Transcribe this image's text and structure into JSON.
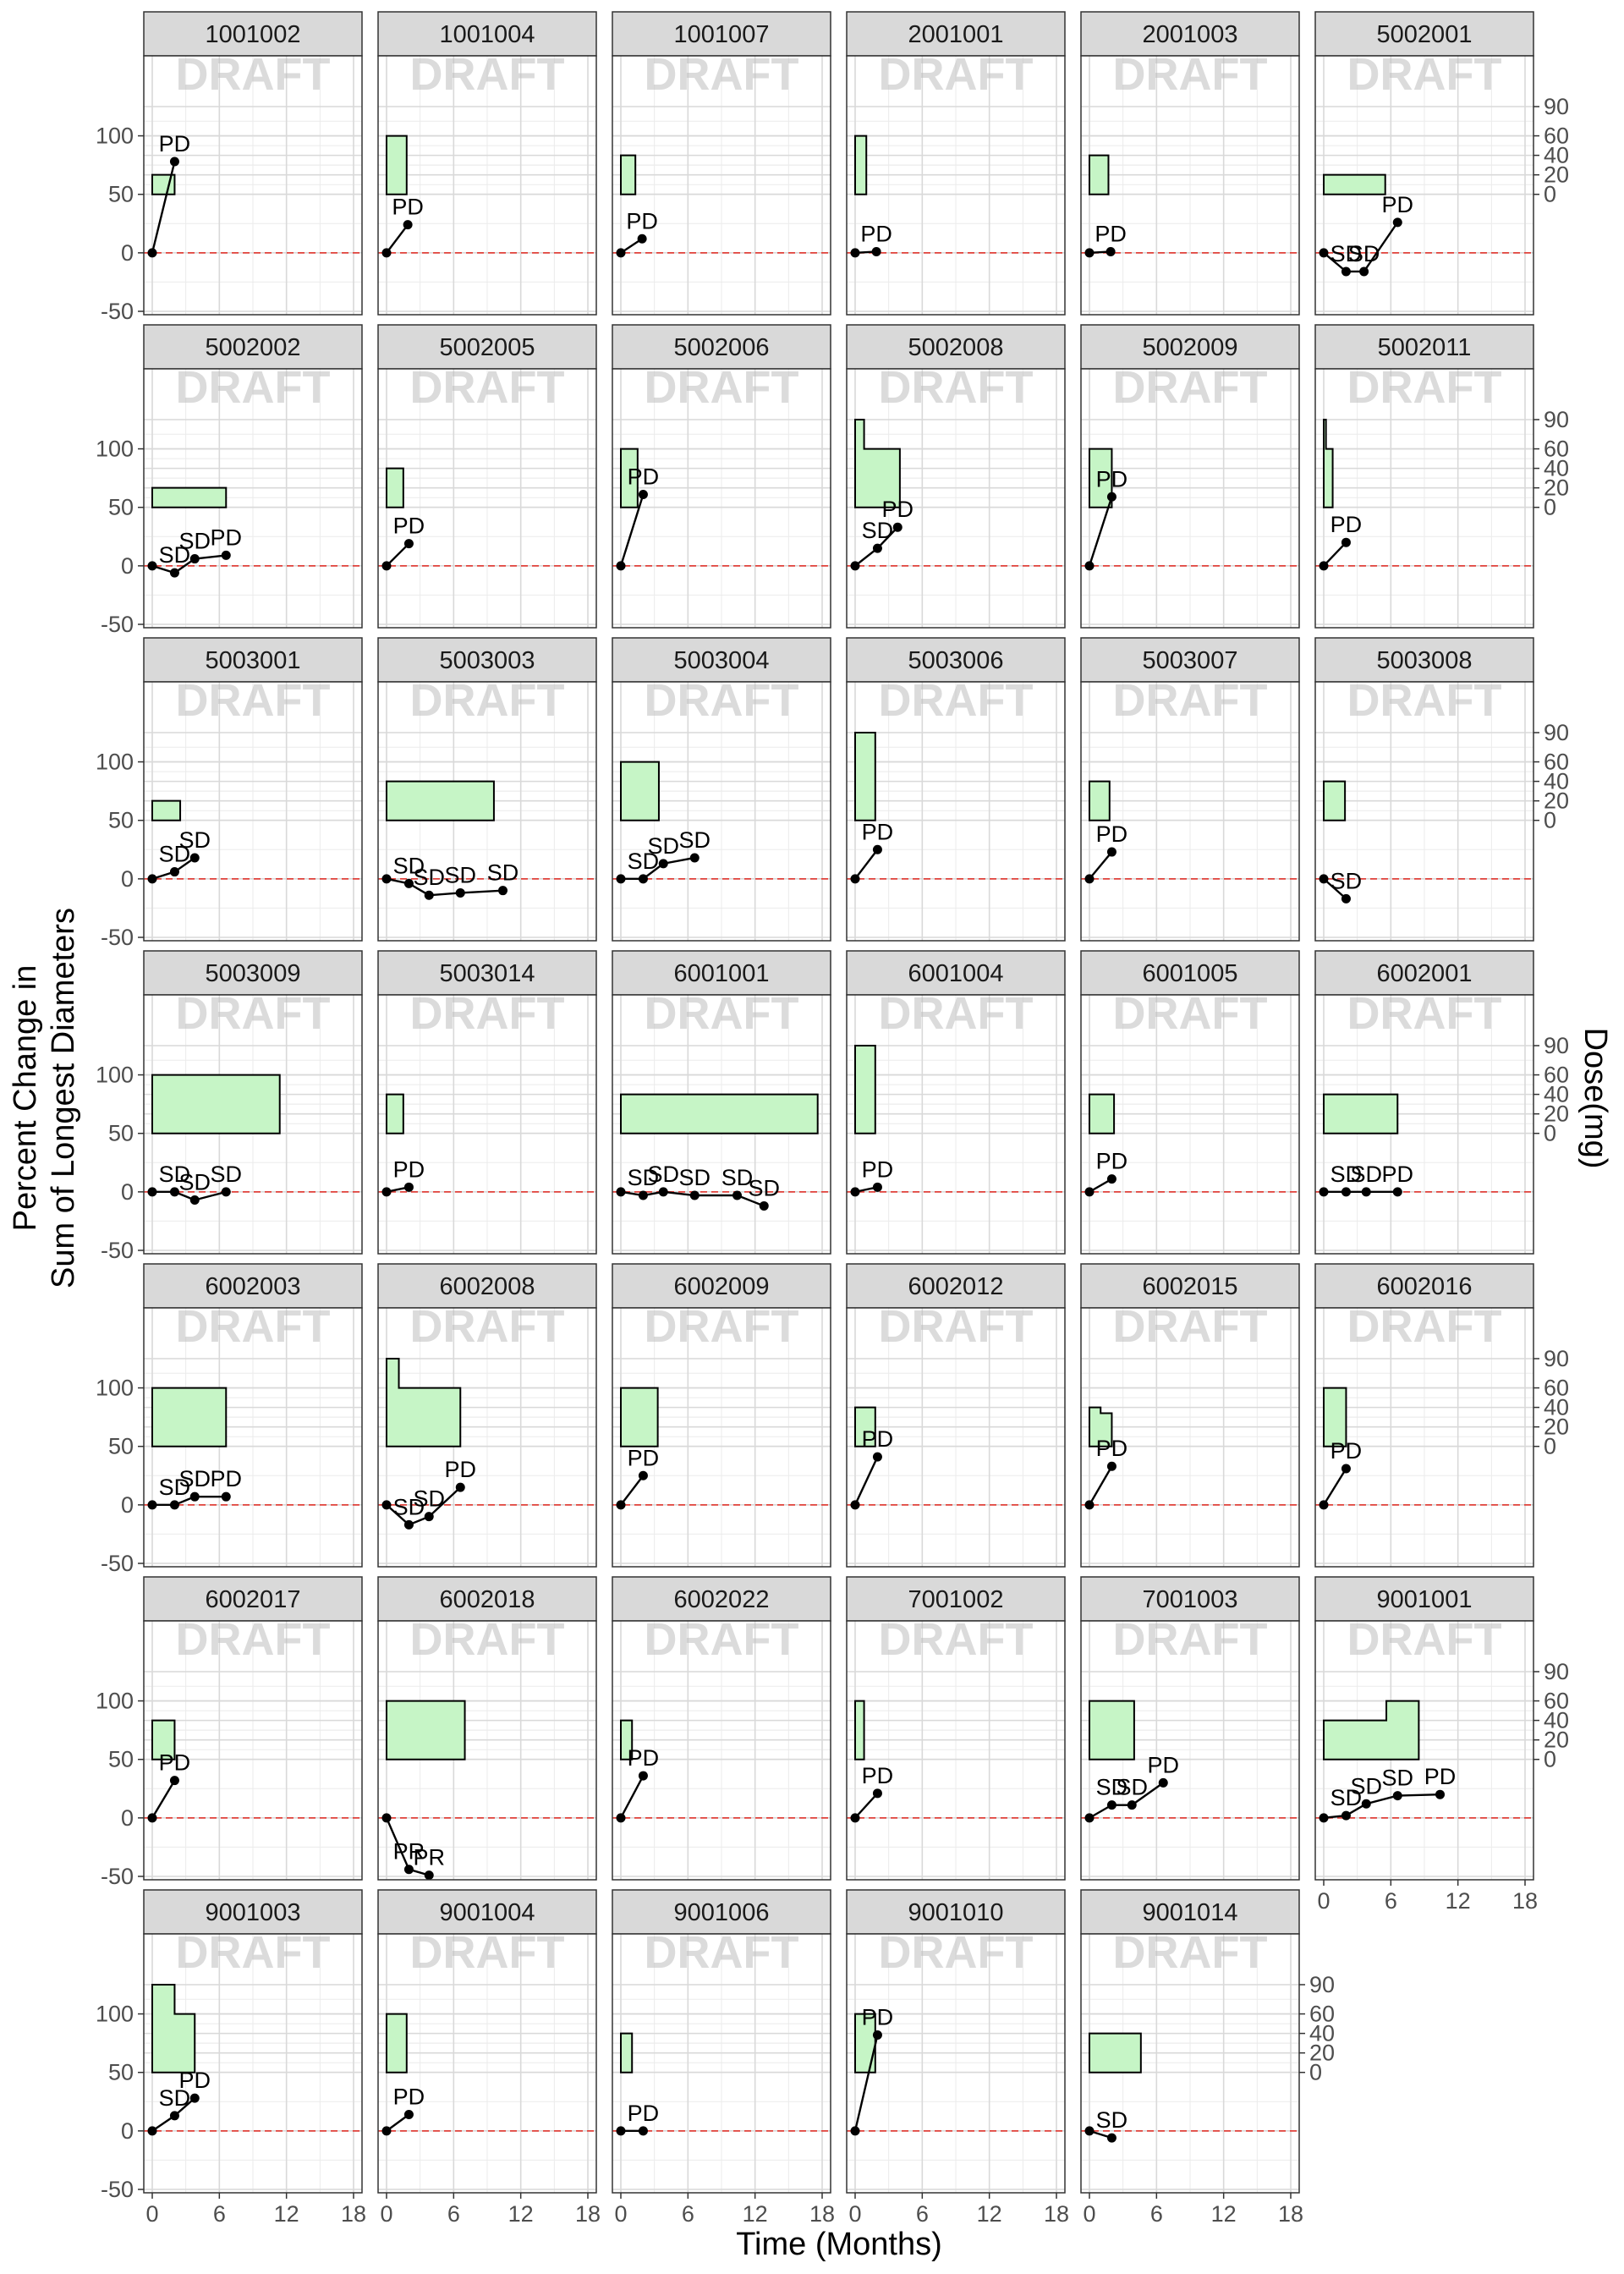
{
  "chart_data": {
    "type": "line",
    "xlabel": "Time (Months)",
    "ylabel": [
      "Percent Change in",
      "Sum of Longest Diameters"
    ],
    "y2label": "Dose(mg)",
    "watermark": "DRAFT",
    "xlim": [
      0,
      18
    ],
    "x_ticks": [
      0,
      6,
      12,
      18
    ],
    "ylim": [
      -50,
      125
    ],
    "y_ticks": [
      -50,
      0,
      50,
      100
    ],
    "y2_ticks": [
      0,
      20,
      40,
      60,
      90
    ],
    "y2_transform": "y = 50 + dose * 50 / 60",
    "reference_line": 0,
    "colors": {
      "dose_fill": "#c6f5c6",
      "ref_line": "#e0413a",
      "strip_bg": "#d9d9d9",
      "line": "#000000"
    },
    "panels": [
      {
        "id": "1001002",
        "dose": [
          [
            0,
            20
          ],
          [
            2,
            20
          ]
        ],
        "points": [
          {
            "x": 0,
            "y": 0
          },
          {
            "x": 2,
            "y": 78,
            "label": "PD"
          }
        ]
      },
      {
        "id": "1001004",
        "dose": [
          [
            0,
            60
          ],
          [
            1.8,
            60
          ]
        ],
        "points": [
          {
            "x": 0,
            "y": 0
          },
          {
            "x": 1.9,
            "y": 24,
            "label": "PD"
          }
        ]
      },
      {
        "id": "1001007",
        "dose": [
          [
            0,
            40
          ],
          [
            1.3,
            40
          ]
        ],
        "points": [
          {
            "x": 0,
            "y": 0
          },
          {
            "x": 1.9,
            "y": 12,
            "label": "PD"
          }
        ]
      },
      {
        "id": "2001001",
        "dose": [
          [
            0,
            60
          ],
          [
            1,
            60
          ]
        ],
        "points": [
          {
            "x": 0,
            "y": 0
          },
          {
            "x": 1.9,
            "y": 1,
            "label": "PD"
          }
        ]
      },
      {
        "id": "2001003",
        "dose": [
          [
            0,
            40
          ],
          [
            1.7,
            40
          ]
        ],
        "points": [
          {
            "x": 0,
            "y": 0
          },
          {
            "x": 1.9,
            "y": 1,
            "label": "PD"
          }
        ]
      },
      {
        "id": "5002001",
        "dose": [
          [
            0,
            20
          ],
          [
            5.5,
            20
          ]
        ],
        "points": [
          {
            "x": 0,
            "y": 0
          },
          {
            "x": 2,
            "y": -16,
            "label": "SD"
          },
          {
            "x": 3.6,
            "y": -16,
            "label": "SD"
          },
          {
            "x": 6.6,
            "y": 26,
            "label": "PD"
          }
        ]
      },
      {
        "id": "5002002",
        "dose": [
          [
            0,
            20
          ],
          [
            6.6,
            20
          ]
        ],
        "points": [
          {
            "x": 0,
            "y": 0
          },
          {
            "x": 2,
            "y": -6,
            "label": "SD"
          },
          {
            "x": 3.8,
            "y": 6,
            "label": "SD"
          },
          {
            "x": 6.6,
            "y": 9,
            "label": "PD"
          }
        ]
      },
      {
        "id": "5002005",
        "dose": [
          [
            0,
            40
          ],
          [
            1.5,
            40
          ]
        ],
        "points": [
          {
            "x": 0,
            "y": 0
          },
          {
            "x": 2,
            "y": 19,
            "label": "PD"
          }
        ]
      },
      {
        "id": "5002006",
        "dose": [
          [
            0,
            60
          ],
          [
            1.5,
            60
          ]
        ],
        "points": [
          {
            "x": 0,
            "y": 0
          },
          {
            "x": 2,
            "y": 61,
            "label": "PD"
          }
        ]
      },
      {
        "id": "5002008",
        "dose": [
          [
            0,
            90
          ],
          [
            0.8,
            90
          ],
          [
            0.8,
            60
          ],
          [
            4,
            60
          ]
        ],
        "points": [
          {
            "x": 0,
            "y": 0
          },
          {
            "x": 2,
            "y": 15,
            "label": "SD"
          },
          {
            "x": 3.8,
            "y": 33,
            "label": "PD"
          }
        ]
      },
      {
        "id": "5002009",
        "dose": [
          [
            0,
            60
          ],
          [
            2,
            60
          ]
        ],
        "points": [
          {
            "x": 0,
            "y": 0
          },
          {
            "x": 2,
            "y": 59,
            "label": "PD"
          }
        ]
      },
      {
        "id": "5002011",
        "dose": [
          [
            0,
            90
          ],
          [
            0.2,
            90
          ],
          [
            0.2,
            60
          ],
          [
            0.8,
            60
          ]
        ],
        "points": [
          {
            "x": 0,
            "y": 0
          },
          {
            "x": 2,
            "y": 20,
            "label": "PD"
          }
        ]
      },
      {
        "id": "5003001",
        "dose": [
          [
            0,
            20
          ],
          [
            2.5,
            20
          ]
        ],
        "points": [
          {
            "x": 0,
            "y": 0
          },
          {
            "x": 2,
            "y": 6,
            "label": "SD"
          },
          {
            "x": 3.8,
            "y": 18,
            "label": "SD"
          }
        ]
      },
      {
        "id": "5003003",
        "dose": [
          [
            0,
            40
          ],
          [
            9.6,
            40
          ]
        ],
        "points": [
          {
            "x": 0,
            "y": 0
          },
          {
            "x": 2,
            "y": -4,
            "label": "SD"
          },
          {
            "x": 3.8,
            "y": -14,
            "label": "SD"
          },
          {
            "x": 6.6,
            "y": -12,
            "label": "SD"
          },
          {
            "x": 10.4,
            "y": -10,
            "label": "SD"
          }
        ]
      },
      {
        "id": "5003004",
        "dose": [
          [
            0,
            60
          ],
          [
            3.4,
            60
          ]
        ],
        "points": [
          {
            "x": 0,
            "y": 0
          },
          {
            "x": 2,
            "y": 0,
            "label": "SD"
          },
          {
            "x": 3.8,
            "y": 13,
            "label": "SD"
          },
          {
            "x": 6.6,
            "y": 18,
            "label": "SD"
          }
        ]
      },
      {
        "id": "5003006",
        "dose": [
          [
            0,
            90
          ],
          [
            1.8,
            90
          ]
        ],
        "points": [
          {
            "x": 0,
            "y": 0
          },
          {
            "x": 2,
            "y": 25,
            "label": "PD"
          }
        ]
      },
      {
        "id": "5003007",
        "dose": [
          [
            0,
            40
          ],
          [
            1.8,
            40
          ]
        ],
        "points": [
          {
            "x": 0,
            "y": 0
          },
          {
            "x": 2,
            "y": 23,
            "label": "PD"
          }
        ]
      },
      {
        "id": "5003008",
        "dose": [
          [
            0,
            40
          ],
          [
            1.9,
            40
          ]
        ],
        "points": [
          {
            "x": 0,
            "y": 0
          },
          {
            "x": 2,
            "y": -17,
            "label": "SD"
          }
        ]
      },
      {
        "id": "5003009",
        "dose": [
          [
            0,
            60
          ],
          [
            11.4,
            60
          ]
        ],
        "points": [
          {
            "x": 0,
            "y": 0
          },
          {
            "x": 2,
            "y": 0,
            "label": "SD"
          },
          {
            "x": 3.8,
            "y": -7,
            "label": "SD"
          },
          {
            "x": 6.6,
            "y": 0,
            "label": "SD"
          }
        ]
      },
      {
        "id": "5003014",
        "dose": [
          [
            0,
            40
          ],
          [
            1.5,
            40
          ]
        ],
        "points": [
          {
            "x": 0,
            "y": 0
          },
          {
            "x": 2,
            "y": 4,
            "label": "PD"
          }
        ]
      },
      {
        "id": "6001001",
        "dose": [
          [
            0,
            40
          ],
          [
            17.6,
            40
          ]
        ],
        "points": [
          {
            "x": 0,
            "y": 0
          },
          {
            "x": 2,
            "y": -3,
            "label": "SD"
          },
          {
            "x": 3.8,
            "y": 0,
            "label": "SD"
          },
          {
            "x": 6.6,
            "y": -3,
            "label": "SD"
          },
          {
            "x": 10.4,
            "y": -3,
            "label": "SD"
          },
          {
            "x": 12.8,
            "y": -12,
            "label": "SD"
          }
        ]
      },
      {
        "id": "6001004",
        "dose": [
          [
            0,
            90
          ],
          [
            1.8,
            90
          ]
        ],
        "points": [
          {
            "x": 0,
            "y": 0
          },
          {
            "x": 2,
            "y": 4,
            "label": "PD"
          }
        ]
      },
      {
        "id": "6001005",
        "dose": [
          [
            0,
            40
          ],
          [
            2.2,
            40
          ]
        ],
        "points": [
          {
            "x": 0,
            "y": 0
          },
          {
            "x": 2,
            "y": 11,
            "label": "PD"
          }
        ]
      },
      {
        "id": "6002001",
        "dose": [
          [
            0,
            40
          ],
          [
            6.6,
            40
          ]
        ],
        "points": [
          {
            "x": 0,
            "y": 0
          },
          {
            "x": 2,
            "y": 0,
            "label": "SD"
          },
          {
            "x": 3.8,
            "y": 0,
            "label": "SD"
          },
          {
            "x": 6.6,
            "y": 0,
            "label": "PD"
          }
        ]
      },
      {
        "id": "6002003",
        "dose": [
          [
            0,
            60
          ],
          [
            6.6,
            60
          ]
        ],
        "points": [
          {
            "x": 0,
            "y": 0
          },
          {
            "x": 2,
            "y": 0,
            "label": "SD"
          },
          {
            "x": 3.8,
            "y": 7,
            "label": "SD"
          },
          {
            "x": 6.6,
            "y": 7,
            "label": "PD"
          }
        ]
      },
      {
        "id": "6002008",
        "dose": [
          [
            0,
            90
          ],
          [
            1.1,
            90
          ],
          [
            1.1,
            60
          ],
          [
            6.6,
            60
          ]
        ],
        "points": [
          {
            "x": 0,
            "y": 0
          },
          {
            "x": 2,
            "y": -17,
            "label": "SD"
          },
          {
            "x": 3.8,
            "y": -10,
            "label": "SD"
          },
          {
            "x": 6.6,
            "y": 15,
            "label": "PD"
          }
        ]
      },
      {
        "id": "6002009",
        "dose": [
          [
            0,
            60
          ],
          [
            3.3,
            60
          ]
        ],
        "points": [
          {
            "x": 0,
            "y": 0
          },
          {
            "x": 2,
            "y": 25,
            "label": "PD"
          }
        ]
      },
      {
        "id": "6002012",
        "dose": [
          [
            0,
            40
          ],
          [
            1.8,
            40
          ]
        ],
        "points": [
          {
            "x": 0,
            "y": 0
          },
          {
            "x": 2,
            "y": 41,
            "label": "PD"
          }
        ]
      },
      {
        "id": "6002015",
        "dose": [
          [
            0,
            40
          ],
          [
            1,
            40
          ],
          [
            1,
            34
          ],
          [
            2,
            34
          ]
        ],
        "points": [
          {
            "x": 0,
            "y": 0
          },
          {
            "x": 2,
            "y": 33,
            "label": "PD"
          }
        ]
      },
      {
        "id": "6002016",
        "dose": [
          [
            0,
            60
          ],
          [
            2,
            60
          ]
        ],
        "points": [
          {
            "x": 0,
            "y": 0
          },
          {
            "x": 2,
            "y": 31,
            "label": "PD"
          }
        ]
      },
      {
        "id": "6002017",
        "dose": [
          [
            0,
            40
          ],
          [
            2,
            40
          ]
        ],
        "points": [
          {
            "x": 0,
            "y": 0
          },
          {
            "x": 2,
            "y": 32,
            "label": "PD"
          }
        ]
      },
      {
        "id": "6002018",
        "dose": [
          [
            0,
            60
          ],
          [
            7,
            60
          ]
        ],
        "points": [
          {
            "x": 0,
            "y": 0
          },
          {
            "x": 2,
            "y": -44,
            "label": "PR"
          },
          {
            "x": 3.8,
            "y": -49,
            "label": "PR"
          }
        ]
      },
      {
        "id": "6002022",
        "dose": [
          [
            0,
            40
          ],
          [
            1,
            40
          ]
        ],
        "points": [
          {
            "x": 0,
            "y": 0
          },
          {
            "x": 2,
            "y": 36,
            "label": "PD"
          }
        ]
      },
      {
        "id": "7001002",
        "dose": [
          [
            0,
            60
          ],
          [
            0.8,
            60
          ]
        ],
        "points": [
          {
            "x": 0,
            "y": 0
          },
          {
            "x": 2,
            "y": 21,
            "label": "PD"
          }
        ]
      },
      {
        "id": "7001003",
        "dose": [
          [
            0,
            60
          ],
          [
            4,
            60
          ]
        ],
        "points": [
          {
            "x": 0,
            "y": 0
          },
          {
            "x": 2,
            "y": 11,
            "label": "SD"
          },
          {
            "x": 3.8,
            "y": 11,
            "label": "SD"
          },
          {
            "x": 6.6,
            "y": 30,
            "label": "PD"
          }
        ]
      },
      {
        "id": "9001001",
        "dose": [
          [
            0,
            40
          ],
          [
            5.6,
            40
          ],
          [
            5.6,
            60
          ],
          [
            8.5,
            60
          ]
        ],
        "points": [
          {
            "x": 0,
            "y": 0
          },
          {
            "x": 2,
            "y": 2,
            "label": "SD"
          },
          {
            "x": 3.8,
            "y": 12,
            "label": "SD"
          },
          {
            "x": 6.6,
            "y": 19,
            "label": "SD"
          },
          {
            "x": 10.4,
            "y": 20,
            "label": "PD"
          }
        ]
      },
      {
        "id": "9001003",
        "dose": [
          [
            0,
            90
          ],
          [
            2,
            90
          ],
          [
            2,
            60
          ],
          [
            3.8,
            60
          ]
        ],
        "points": [
          {
            "x": 0,
            "y": 0
          },
          {
            "x": 2,
            "y": 13,
            "label": "SD"
          },
          {
            "x": 3.8,
            "y": 28,
            "label": "PD"
          }
        ]
      },
      {
        "id": "9001004",
        "dose": [
          [
            0,
            60
          ],
          [
            1.8,
            60
          ]
        ],
        "points": [
          {
            "x": 0,
            "y": 0
          },
          {
            "x": 2,
            "y": 14,
            "label": "PD"
          }
        ]
      },
      {
        "id": "9001006",
        "dose": [
          [
            0,
            40
          ],
          [
            1,
            40
          ]
        ],
        "points": [
          {
            "x": 0,
            "y": 0
          },
          {
            "x": 2,
            "y": 0,
            "label": "PD"
          }
        ]
      },
      {
        "id": "9001010",
        "dose": [
          [
            0,
            60
          ],
          [
            1.8,
            60
          ]
        ],
        "points": [
          {
            "x": 0,
            "y": 0
          },
          {
            "x": 2,
            "y": 82,
            "label": "PD"
          }
        ]
      },
      {
        "id": "9001014",
        "dose": [
          [
            0,
            40
          ],
          [
            4.6,
            40
          ]
        ],
        "points": [
          {
            "x": 0,
            "y": 0
          },
          {
            "x": 2,
            "y": -6,
            "label": "SD"
          }
        ]
      }
    ]
  }
}
